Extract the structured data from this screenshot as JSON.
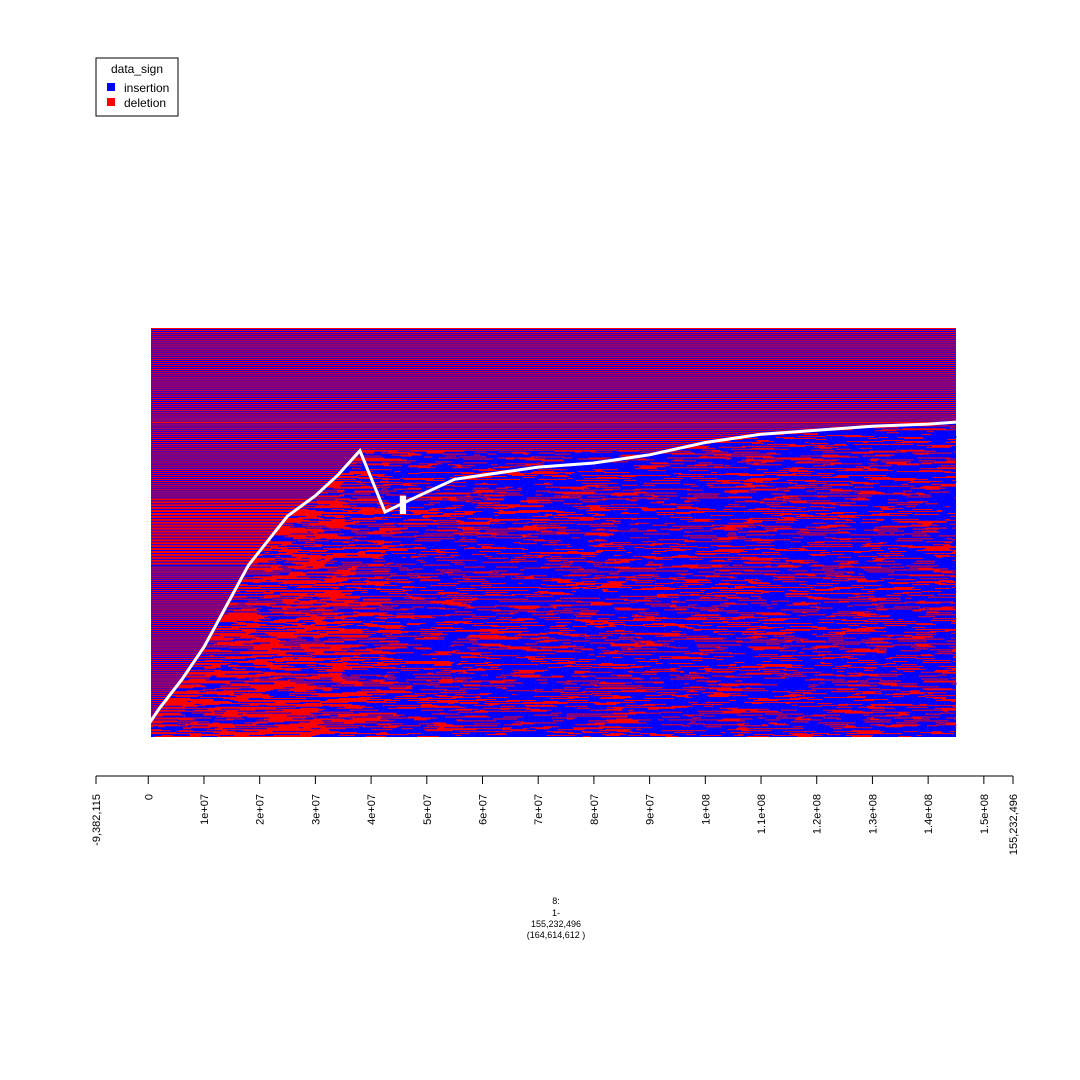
{
  "chart_data": {
    "type": "heatmap",
    "title": "",
    "xlabel": "",
    "ylabel": "",
    "legend": {
      "title": "data_sign",
      "position": "top-left",
      "entries": [
        {
          "label": "insertion",
          "color": "#0000ff"
        },
        {
          "label": "deletion",
          "color": "#ff0000"
        }
      ]
    },
    "x_axis": {
      "lim": [
        -9382115,
        155232496
      ],
      "ticks": [
        {
          "value": -9382115,
          "label": "-9,382,115"
        },
        {
          "value": 0,
          "label": "0"
        },
        {
          "value": 10000000,
          "label": "1e+07"
        },
        {
          "value": 20000000,
          "label": "2e+07"
        },
        {
          "value": 30000000,
          "label": "3e+07"
        },
        {
          "value": 40000000,
          "label": "4e+07"
        },
        {
          "value": 50000000,
          "label": "5e+07"
        },
        {
          "value": 60000000,
          "label": "6e+07"
        },
        {
          "value": 70000000,
          "label": "7e+07"
        },
        {
          "value": 80000000,
          "label": "8e+07"
        },
        {
          "value": 90000000,
          "label": "9e+07"
        },
        {
          "value": 100000000,
          "label": "1e+08"
        },
        {
          "value": 110000000,
          "label": "1.1e+08"
        },
        {
          "value": 120000000,
          "label": "1.2e+08"
        },
        {
          "value": 130000000,
          "label": "1.3e+08"
        },
        {
          "value": 140000000,
          "label": "1.4e+08"
        },
        {
          "value": 150000000,
          "label": "1.5e+08"
        },
        {
          "value": 155232496,
          "label": "155,232,496"
        }
      ]
    },
    "data_x_range": [
      0,
      145000000
    ],
    "gap_x_range": [
      43000000,
      47000000
    ],
    "boundary": {
      "description": "rows below this curve start at the curve position",
      "x": [
        0,
        2000000,
        6000000,
        10000000,
        18000000,
        25000000,
        30000000,
        34000000,
        38000000,
        42500000,
        47000000,
        55000000,
        65000000,
        70000000,
        80000000,
        90000000,
        100000000,
        110000000,
        120000000,
        125000000,
        130000000,
        140000000,
        145000000
      ],
      "row_fraction": [
        0.97,
        0.93,
        0.86,
        0.78,
        0.58,
        0.46,
        0.41,
        0.36,
        0.3,
        0.45,
        0.42,
        0.37,
        0.35,
        0.34,
        0.33,
        0.31,
        0.28,
        0.26,
        0.25,
        0.245,
        0.24,
        0.235,
        0.23
      ]
    },
    "region_label": [
      "8:",
      "1-",
      "155,232,496",
      "(164,614,612 )"
    ]
  }
}
